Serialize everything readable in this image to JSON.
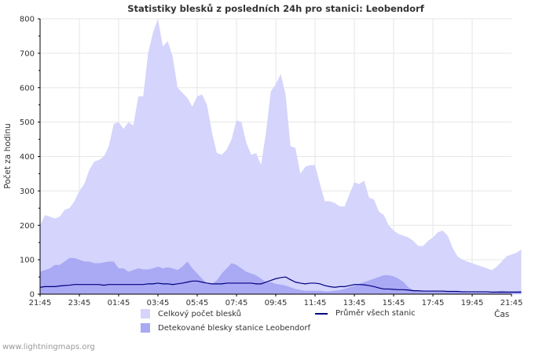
{
  "chart_data": {
    "type": "area",
    "title": "Statistiky blesků z posledních 24h pro stanici: Leobendorf",
    "ylabel": "Počet za hodinu",
    "xlabel": "Čas",
    "ylim": [
      0,
      800
    ],
    "yticks": [
      0,
      100,
      200,
      300,
      400,
      500,
      600,
      700,
      800
    ],
    "xticks": [
      "21:45",
      "23:45",
      "01:45",
      "03:45",
      "05:45",
      "07:45",
      "09:45",
      "11:45",
      "13:45",
      "15:45",
      "17:45",
      "19:45",
      "21:45"
    ],
    "xrange_hours": 24,
    "sample_step_hours": 0.25,
    "colors": {
      "total": "#d4d4fc",
      "detected": "#a9a9f4",
      "average": "#00007f",
      "axis": "#000000",
      "grid": "#e6e6e6",
      "text": "#333333"
    },
    "series": [
      {
        "name": "Celkový počet blesků",
        "kind": "area",
        "values": [
          200,
          230,
          225,
          220,
          225,
          245,
          250,
          270,
          300,
          320,
          360,
          385,
          390,
          400,
          430,
          495,
          500,
          480,
          500,
          490,
          575,
          575,
          700,
          760,
          800,
          720,
          735,
          690,
          600,
          585,
          570,
          545,
          575,
          580,
          550,
          470,
          410,
          405,
          420,
          450,
          505,
          500,
          440,
          405,
          410,
          375,
          470,
          590,
          610,
          640,
          580,
          430,
          425,
          350,
          370,
          375,
          375,
          320,
          270,
          270,
          265,
          255,
          255,
          290,
          325,
          320,
          330,
          280,
          275,
          240,
          230,
          200,
          185,
          175,
          170,
          165,
          155,
          140,
          140,
          155,
          165,
          180,
          185,
          170,
          135,
          110,
          100,
          95,
          90,
          85,
          80,
          75,
          70,
          80,
          95,
          110,
          115,
          120,
          130
        ]
      },
      {
        "name": "Detekované blesky stanice Leobendorf",
        "kind": "area",
        "values": [
          65,
          70,
          75,
          85,
          85,
          95,
          105,
          105,
          100,
          95,
          95,
          90,
          90,
          92,
          95,
          95,
          75,
          75,
          65,
          70,
          75,
          72,
          72,
          75,
          80,
          75,
          78,
          75,
          70,
          80,
          95,
          75,
          60,
          45,
          30,
          30,
          40,
          60,
          75,
          90,
          85,
          75,
          65,
          60,
          55,
          45,
          35,
          35,
          30,
          28,
          25,
          20,
          15,
          12,
          10,
          10,
          10,
          10,
          8,
          8,
          10,
          12,
          15,
          20,
          25,
          30,
          35,
          40,
          45,
          50,
          55,
          55,
          52,
          45,
          35,
          20,
          12,
          10,
          10,
          10,
          10,
          8,
          8,
          8,
          8,
          7,
          6,
          5,
          5,
          5,
          5,
          5,
          5,
          8,
          10,
          8,
          8,
          8,
          10
        ]
      },
      {
        "name": "Průměr všech stanic",
        "kind": "line",
        "values": [
          20,
          22,
          22,
          22,
          24,
          25,
          26,
          28,
          28,
          28,
          28,
          28,
          28,
          26,
          28,
          28,
          28,
          28,
          28,
          28,
          28,
          28,
          30,
          30,
          32,
          30,
          30,
          28,
          30,
          32,
          35,
          38,
          38,
          35,
          32,
          30,
          30,
          30,
          32,
          32,
          32,
          32,
          32,
          32,
          30,
          30,
          35,
          40,
          45,
          48,
          50,
          42,
          35,
          32,
          30,
          32,
          32,
          30,
          25,
          22,
          20,
          22,
          22,
          25,
          28,
          28,
          27,
          25,
          22,
          18,
          15,
          15,
          14,
          13,
          13,
          12,
          10,
          10,
          9,
          9,
          9,
          9,
          9,
          8,
          8,
          8,
          7,
          7,
          7,
          7,
          7,
          7,
          6,
          6,
          6,
          6,
          6,
          6,
          6
        ]
      }
    ],
    "legend": [
      "Celkový počet blesků",
      "Detekované blesky stanice Leobendorf",
      "Průměr všech stanic"
    ]
  },
  "footer": "www.lightningmaps.org"
}
